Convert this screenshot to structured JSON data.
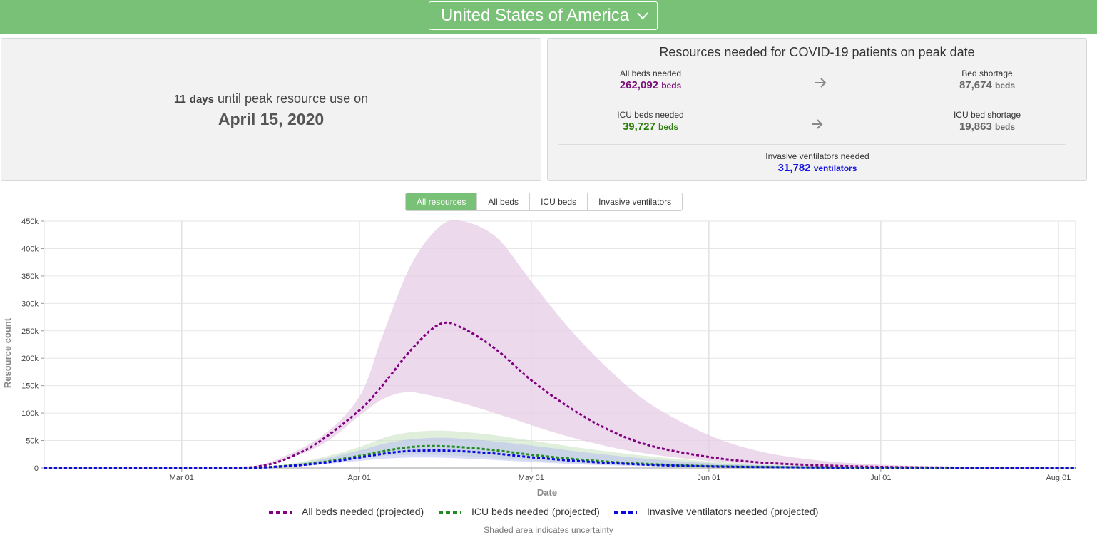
{
  "header": {
    "country": "United States of America",
    "accent_color": "#78c176",
    "icons": {
      "dropdown": "chevron-down-icon"
    }
  },
  "peak": {
    "days_number": "11",
    "days_unit": "days",
    "text": "until peak resource use on",
    "date": "April 15, 2020"
  },
  "resources": {
    "title": "Resources needed for COVID-19 patients on peak date",
    "all_beds": {
      "label": "All beds needed",
      "value": "262,092",
      "unit": "beds"
    },
    "bed_shortage": {
      "label": "Bed shortage",
      "value": "87,674",
      "unit": "beds"
    },
    "icu_beds": {
      "label": "ICU beds needed",
      "value": "39,727",
      "unit": "beds"
    },
    "icu_shortage": {
      "label": "ICU bed shortage",
      "value": "19,863",
      "unit": "beds"
    },
    "ventilators": {
      "label": "Invasive ventilators needed",
      "value": "31,782",
      "unit": "ventilators"
    },
    "icons": {
      "arrow": "arrow-right-icon"
    }
  },
  "tabs": [
    {
      "label": "All resources",
      "active": true
    },
    {
      "label": "All beds",
      "active": false
    },
    {
      "label": "ICU beds",
      "active": false
    },
    {
      "label": "Invasive ventilators",
      "active": false
    }
  ],
  "chart_data": {
    "type": "line",
    "xlabel": "Date",
    "ylabel": "Resource count",
    "x_ticks": [
      "Mar 01",
      "Apr 01",
      "May 01",
      "Jun 01",
      "Jul 01",
      "Aug 01"
    ],
    "y_ticks": [
      "0",
      "50k",
      "100k",
      "150k",
      "200k",
      "250k",
      "300k",
      "350k",
      "400k",
      "450k"
    ],
    "ylim": [
      0,
      450000
    ],
    "xlim": [
      "2020-02-06",
      "2020-08-04"
    ],
    "grid": true,
    "legend_position": "bottom",
    "series": [
      {
        "name": "All beds needed (projected)",
        "color": "#800080",
        "points": [
          [
            "2020-02-06",
            0
          ],
          [
            "2020-03-08",
            300
          ],
          [
            "2020-03-15",
            4000
          ],
          [
            "2020-03-20",
            20000
          ],
          [
            "2020-03-25",
            48000
          ],
          [
            "2020-04-01",
            105000
          ],
          [
            "2020-04-05",
            150000
          ],
          [
            "2020-04-10",
            215000
          ],
          [
            "2020-04-15",
            262092
          ],
          [
            "2020-04-19",
            255000
          ],
          [
            "2020-04-25",
            215000
          ],
          [
            "2020-05-01",
            160000
          ],
          [
            "2020-05-08",
            108000
          ],
          [
            "2020-05-15",
            67000
          ],
          [
            "2020-05-22",
            40000
          ],
          [
            "2020-06-01",
            20000
          ],
          [
            "2020-06-10",
            10000
          ],
          [
            "2020-06-20",
            5000
          ],
          [
            "2020-07-01",
            2000
          ],
          [
            "2020-07-15",
            700
          ],
          [
            "2020-08-04",
            200
          ]
        ],
        "upper": [
          [
            "2020-02-06",
            0
          ],
          [
            "2020-03-08",
            500
          ],
          [
            "2020-03-15",
            6000
          ],
          [
            "2020-03-25",
            55000
          ],
          [
            "2020-04-01",
            130000
          ],
          [
            "2020-04-05",
            240000
          ],
          [
            "2020-04-10",
            370000
          ],
          [
            "2020-04-15",
            440000
          ],
          [
            "2020-04-19",
            450000
          ],
          [
            "2020-04-25",
            420000
          ],
          [
            "2020-05-01",
            340000
          ],
          [
            "2020-05-08",
            250000
          ],
          [
            "2020-05-15",
            175000
          ],
          [
            "2020-05-22",
            115000
          ],
          [
            "2020-06-01",
            60000
          ],
          [
            "2020-06-10",
            30000
          ],
          [
            "2020-06-20",
            14000
          ],
          [
            "2020-07-01",
            6000
          ],
          [
            "2020-07-15",
            2000
          ],
          [
            "2020-08-04",
            500
          ]
        ],
        "lower": [
          [
            "2020-02-06",
            0
          ],
          [
            "2020-03-08",
            200
          ],
          [
            "2020-03-15",
            3000
          ],
          [
            "2020-03-25",
            40000
          ],
          [
            "2020-04-01",
            95000
          ],
          [
            "2020-04-05",
            125000
          ],
          [
            "2020-04-09",
            138000
          ],
          [
            "2020-04-13",
            133000
          ],
          [
            "2020-04-20",
            115000
          ],
          [
            "2020-04-27",
            92000
          ],
          [
            "2020-05-04",
            68000
          ],
          [
            "2020-05-12",
            45000
          ],
          [
            "2020-05-20",
            28000
          ],
          [
            "2020-06-01",
            13000
          ],
          [
            "2020-06-15",
            5000
          ],
          [
            "2020-07-01",
            1500
          ],
          [
            "2020-08-04",
            100
          ]
        ]
      },
      {
        "name": "ICU beds needed (projected)",
        "color": "#228b22",
        "points": [
          [
            "2020-02-06",
            0
          ],
          [
            "2020-03-10",
            300
          ],
          [
            "2020-03-18",
            3000
          ],
          [
            "2020-03-25",
            10000
          ],
          [
            "2020-04-01",
            22000
          ],
          [
            "2020-04-07",
            34000
          ],
          [
            "2020-04-12",
            39727
          ],
          [
            "2020-04-18",
            38500
          ],
          [
            "2020-04-25",
            32000
          ],
          [
            "2020-05-01",
            24000
          ],
          [
            "2020-05-10",
            15000
          ],
          [
            "2020-05-20",
            8000
          ],
          [
            "2020-06-01",
            3500
          ],
          [
            "2020-06-15",
            1500
          ],
          [
            "2020-07-01",
            600
          ],
          [
            "2020-08-04",
            100
          ]
        ],
        "upper": [
          [
            "2020-02-06",
            0
          ],
          [
            "2020-03-10",
            500
          ],
          [
            "2020-03-18",
            5000
          ],
          [
            "2020-03-25",
            18000
          ],
          [
            "2020-04-01",
            38000
          ],
          [
            "2020-04-07",
            60000
          ],
          [
            "2020-04-14",
            68000
          ],
          [
            "2020-04-22",
            63000
          ],
          [
            "2020-05-01",
            50000
          ],
          [
            "2020-05-10",
            36000
          ],
          [
            "2020-05-20",
            23000
          ],
          [
            "2020-06-01",
            12000
          ],
          [
            "2020-06-15",
            5000
          ],
          [
            "2020-07-01",
            2000
          ],
          [
            "2020-08-04",
            300
          ]
        ],
        "lower": [
          [
            "2020-02-06",
            0
          ],
          [
            "2020-03-10",
            200
          ],
          [
            "2020-03-18",
            2000
          ],
          [
            "2020-03-25",
            8000
          ],
          [
            "2020-04-01",
            17000
          ],
          [
            "2020-04-07",
            23000
          ],
          [
            "2020-04-14",
            24000
          ],
          [
            "2020-04-22",
            20000
          ],
          [
            "2020-05-01",
            14000
          ],
          [
            "2020-05-10",
            8500
          ],
          [
            "2020-05-20",
            4500
          ],
          [
            "2020-06-01",
            2000
          ],
          [
            "2020-07-01",
            400
          ],
          [
            "2020-08-04",
            50
          ]
        ]
      },
      {
        "name": "Invasive ventilators needed (projected)",
        "color": "#0a0adc",
        "points": [
          [
            "2020-02-06",
            0
          ],
          [
            "2020-03-10",
            250
          ],
          [
            "2020-03-18",
            2500
          ],
          [
            "2020-03-25",
            8500
          ],
          [
            "2020-04-01",
            19000
          ],
          [
            "2020-04-07",
            28500
          ],
          [
            "2020-04-12",
            31782
          ],
          [
            "2020-04-18",
            31000
          ],
          [
            "2020-04-25",
            26000
          ],
          [
            "2020-05-01",
            19500
          ],
          [
            "2020-05-10",
            12000
          ],
          [
            "2020-05-20",
            6500
          ],
          [
            "2020-06-01",
            2800
          ],
          [
            "2020-06-15",
            1200
          ],
          [
            "2020-07-01",
            500
          ],
          [
            "2020-08-04",
            80
          ]
        ],
        "upper": [
          [
            "2020-02-06",
            0
          ],
          [
            "2020-03-10",
            400
          ],
          [
            "2020-03-18",
            4000
          ],
          [
            "2020-03-25",
            15000
          ],
          [
            "2020-04-01",
            32000
          ],
          [
            "2020-04-07",
            48000
          ],
          [
            "2020-04-14",
            55000
          ],
          [
            "2020-04-22",
            51000
          ],
          [
            "2020-05-01",
            41000
          ],
          [
            "2020-05-10",
            29000
          ],
          [
            "2020-05-20",
            18000
          ],
          [
            "2020-06-01",
            9000
          ],
          [
            "2020-06-15",
            4000
          ],
          [
            "2020-07-01",
            1500
          ],
          [
            "2020-08-04",
            250
          ]
        ],
        "lower": [
          [
            "2020-02-06",
            0
          ],
          [
            "2020-03-10",
            150
          ],
          [
            "2020-03-18",
            1500
          ],
          [
            "2020-03-25",
            6000
          ],
          [
            "2020-04-01",
            13000
          ],
          [
            "2020-04-07",
            18000
          ],
          [
            "2020-04-14",
            19000
          ],
          [
            "2020-04-22",
            16000
          ],
          [
            "2020-05-01",
            11000
          ],
          [
            "2020-05-10",
            6500
          ],
          [
            "2020-05-20",
            3500
          ],
          [
            "2020-06-01",
            1500
          ],
          [
            "2020-07-01",
            300
          ],
          [
            "2020-08-04",
            40
          ]
        ]
      }
    ]
  },
  "band_colors": {
    "All beds needed (projected)": "#e5cce5",
    "ICU beds needed (projected)": "#c6e0c0",
    "Invasive ventilators needed (projected)": "#b8bff0"
  },
  "note": "Shaded area indicates uncertainty"
}
